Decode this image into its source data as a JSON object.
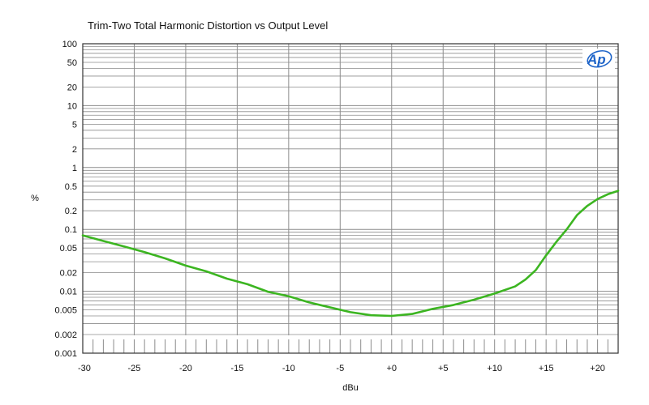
{
  "colors": {
    "series": "#3cb521",
    "grid": "#8c8c8c",
    "frame": "#333333",
    "logo": "#1e64c8"
  },
  "chart_data": {
    "type": "line",
    "title": "Trim-Two Total Harmonic Distortion vs Output Level",
    "xlabel": "dBu",
    "ylabel": "%",
    "logo_text": "Ap",
    "logo_icon": "audio-precision-logo",
    "xlim": [
      -30,
      22
    ],
    "ylim": [
      0.001,
      100
    ],
    "yscale": "log",
    "grid": true,
    "x_ticks": [
      {
        "value": -30,
        "label": "-30"
      },
      {
        "value": -25,
        "label": "-25"
      },
      {
        "value": -20,
        "label": "-20"
      },
      {
        "value": -15,
        "label": "-15"
      },
      {
        "value": -10,
        "label": "-10"
      },
      {
        "value": -5,
        "label": "-5"
      },
      {
        "value": 0,
        "label": "+0"
      },
      {
        "value": 5,
        "label": "+5"
      },
      {
        "value": 10,
        "label": "+10"
      },
      {
        "value": 15,
        "label": "+15"
      },
      {
        "value": 20,
        "label": "+20"
      }
    ],
    "y_ticks": [
      {
        "value": 100,
        "label": "100"
      },
      {
        "value": 50,
        "label": "50"
      },
      {
        "value": 20,
        "label": "20"
      },
      {
        "value": 10,
        "label": "10"
      },
      {
        "value": 5,
        "label": "5"
      },
      {
        "value": 2,
        "label": "2"
      },
      {
        "value": 1,
        "label": "1"
      },
      {
        "value": 0.5,
        "label": "0.5"
      },
      {
        "value": 0.2,
        "label": "0.2"
      },
      {
        "value": 0.1,
        "label": "0.1"
      },
      {
        "value": 0.05,
        "label": "0.05"
      },
      {
        "value": 0.02,
        "label": "0.02"
      },
      {
        "value": 0.01,
        "label": "0.01"
      },
      {
        "value": 0.005,
        "label": "0.005"
      },
      {
        "value": 0.002,
        "label": "0.002"
      },
      {
        "value": 0.001,
        "label": "0.001"
      }
    ],
    "series": [
      {
        "x": [
          -30,
          -28,
          -26,
          -24,
          -22,
          -20,
          -18,
          -16,
          -14,
          -12,
          -10,
          -8,
          -6,
          -4,
          -2,
          0,
          2,
          4,
          6,
          8,
          10,
          12,
          13,
          14,
          15,
          16,
          17,
          18,
          19,
          20,
          21,
          22
        ],
        "y": [
          0.08,
          0.065,
          0.053,
          0.043,
          0.034,
          0.026,
          0.021,
          0.016,
          0.013,
          0.0098,
          0.0083,
          0.0066,
          0.0055,
          0.0046,
          0.0041,
          0.004,
          0.0043,
          0.0052,
          0.006,
          0.0073,
          0.0092,
          0.012,
          0.0155,
          0.022,
          0.038,
          0.063,
          0.1,
          0.17,
          0.24,
          0.31,
          0.37,
          0.42
        ]
      }
    ]
  }
}
